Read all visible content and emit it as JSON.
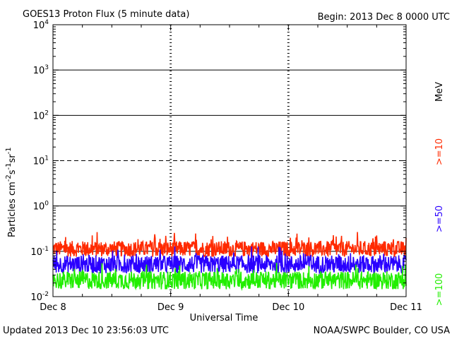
{
  "chart_data": {
    "type": "line",
    "title": "GOES13 Proton Flux (5 minute data)",
    "begin_label": "Begin: 2013 Dec 8 0000 UTC",
    "xlabel": "Universal Time",
    "ylabel": "Particles cm",
    "ylabel_sup1": "-2",
    "ylabel_s": "s",
    "ylabel_sup2": "-1",
    "ylabel_sr": "sr",
    "ylabel_sup3": "-1",
    "yscale": "log",
    "ylim": [
      0.01,
      10000
    ],
    "y_ticks": [
      {
        "base": "10",
        "exp": "-2",
        "value": 0.01
      },
      {
        "base": "10",
        "exp": "-1",
        "value": 0.1
      },
      {
        "base": "10",
        "exp": "0",
        "value": 1
      },
      {
        "base": "10",
        "exp": "1",
        "value": 10
      },
      {
        "base": "10",
        "exp": "2",
        "value": 100
      },
      {
        "base": "10",
        "exp": "3",
        "value": 1000
      },
      {
        "base": "10",
        "exp": "4",
        "value": 10000
      }
    ],
    "x_ticks": [
      "Dec 8",
      "Dec 9",
      "Dec 10",
      "Dec 11"
    ],
    "xlim_days": [
      0,
      3
    ],
    "unit_label": "MeV",
    "series": [
      {
        "name": ">=10",
        "color": "#ff2a00",
        "baseline": 0.1,
        "spread": 0.35
      },
      {
        "name": ">=50",
        "color": "#2a00ff",
        "baseline": 0.045,
        "spread": 0.4
      },
      {
        "name": ">=100",
        "color": "#22ee00",
        "baseline": 0.02,
        "spread": 0.4
      }
    ],
    "reference_lines": [
      {
        "value": 1000,
        "style": "solid"
      },
      {
        "value": 100,
        "style": "solid"
      },
      {
        "value": 10,
        "style": "dashed"
      },
      {
        "value": 1,
        "style": "solid"
      },
      {
        "value": 0.1,
        "style": "solid"
      }
    ]
  },
  "footer": {
    "updated": "Updated 2013 Dec 10 23:56:03 UTC",
    "credit": "NOAA/SWPC Boulder, CO USA"
  }
}
